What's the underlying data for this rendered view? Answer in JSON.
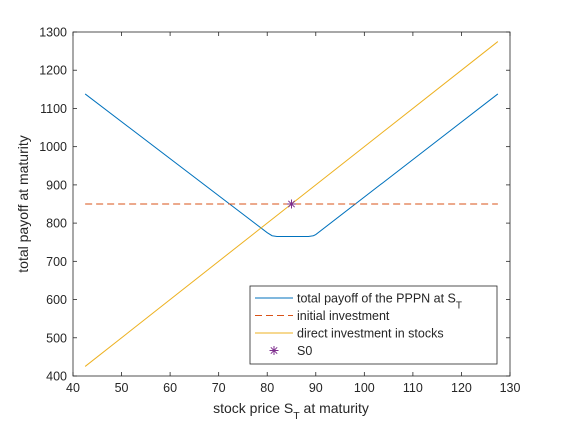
{
  "chart_data": {
    "type": "line",
    "title": "",
    "xlabel": "stock price S_T at maturity",
    "ylabel": "total payoff at maturity",
    "xlim": [
      40,
      130
    ],
    "ylim": [
      400,
      1300
    ],
    "xticks": [
      40,
      50,
      60,
      70,
      80,
      90,
      100,
      110,
      120,
      130
    ],
    "yticks": [
      400,
      500,
      600,
      700,
      800,
      900,
      1000,
      1100,
      1200,
      1300
    ],
    "grid": false,
    "legend_position": "bottom-right",
    "series": [
      {
        "name": "total payoff of the PPPN at S_T",
        "style": "solid",
        "color": "#0072BD",
        "x": [
          42.5,
          80.0,
          81.0,
          82.0,
          88.5,
          89.5,
          90.0,
          127.5
        ],
        "y": [
          1138,
          775,
          767,
          765,
          765,
          767,
          770,
          1138
        ]
      },
      {
        "name": "initial investment",
        "style": "dashed",
        "color": "#D95319",
        "x": [
          42.5,
          127.5
        ],
        "y": [
          850,
          850
        ]
      },
      {
        "name": "direct investment in stocks",
        "style": "solid",
        "color": "#EDB120",
        "x": [
          42.5,
          127.5
        ],
        "y": [
          425,
          1275
        ]
      },
      {
        "name": "S0",
        "style": "marker",
        "marker": "asterisk",
        "color": "#7E2F8E",
        "x": [
          85
        ],
        "y": [
          850
        ]
      }
    ]
  }
}
